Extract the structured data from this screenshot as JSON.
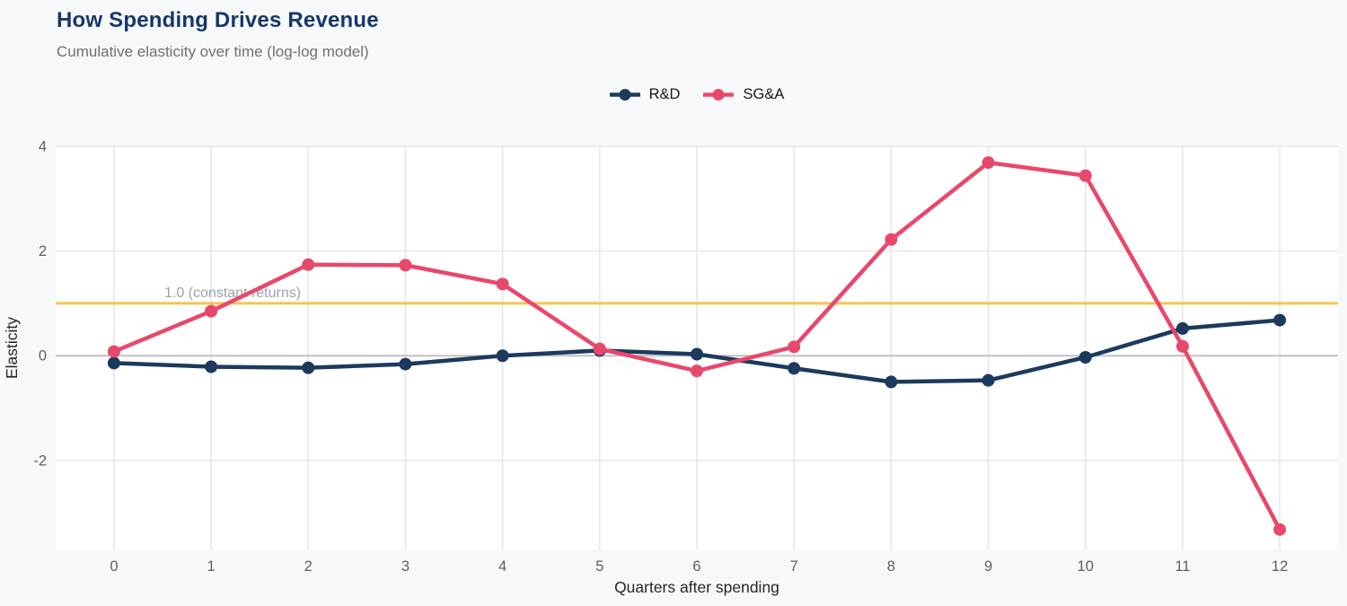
{
  "header": {
    "title": "How Spending Drives Revenue",
    "subtitle": "Cumulative elasticity over time (log-log model)"
  },
  "legend": [
    {
      "label": "R&D",
      "color": "#1c3a5e"
    },
    {
      "label": "SG&A",
      "color": "#e8486b"
    }
  ],
  "chart_data": {
    "type": "line",
    "title": "How Spending Drives Revenue",
    "subtitle": "Cumulative elasticity over time (log-log model)",
    "xlabel": "Quarters after spending",
    "ylabel": "Elasticity",
    "x": [
      0,
      1,
      2,
      3,
      4,
      5,
      6,
      7,
      8,
      9,
      10,
      11,
      12
    ],
    "series": [
      {
        "name": "R&D",
        "color": "#1c3a5e",
        "values": [
          -0.14,
          -0.21,
          -0.23,
          -0.16,
          0.0,
          0.1,
          0.03,
          -0.24,
          -0.5,
          -0.47,
          -0.03,
          0.52,
          0.68
        ]
      },
      {
        "name": "SG&A",
        "color": "#e8486b",
        "values": [
          0.08,
          0.85,
          1.74,
          1.73,
          1.37,
          0.13,
          -0.29,
          0.17,
          2.22,
          3.69,
          3.44,
          0.18,
          -3.32
        ]
      }
    ],
    "reference_line": {
      "value": 1.0,
      "label": "1.0 (constant returns)",
      "color": "#f6c44e",
      "label_color": "#9aa3ad"
    },
    "x_ticks": [
      "0",
      "1",
      "2",
      "3",
      "4",
      "5",
      "6",
      "7",
      "8",
      "9",
      "10",
      "11",
      "12"
    ],
    "y_ticks": [
      -2,
      0,
      2,
      4
    ],
    "xlim": [
      -0.6,
      12.6
    ],
    "ylim": [
      -3.7,
      4.0
    ],
    "grid": true,
    "legend_position": "top-center"
  },
  "colors": {
    "background": "#f7f8fa",
    "plot_background": "#ffffff",
    "grid": "#e6e7ea",
    "zero_line": "#bfc1c6",
    "tick": "#5b6068",
    "axis_label": "#23272e",
    "title": "#16386b",
    "subtitle": "#6c7278"
  }
}
